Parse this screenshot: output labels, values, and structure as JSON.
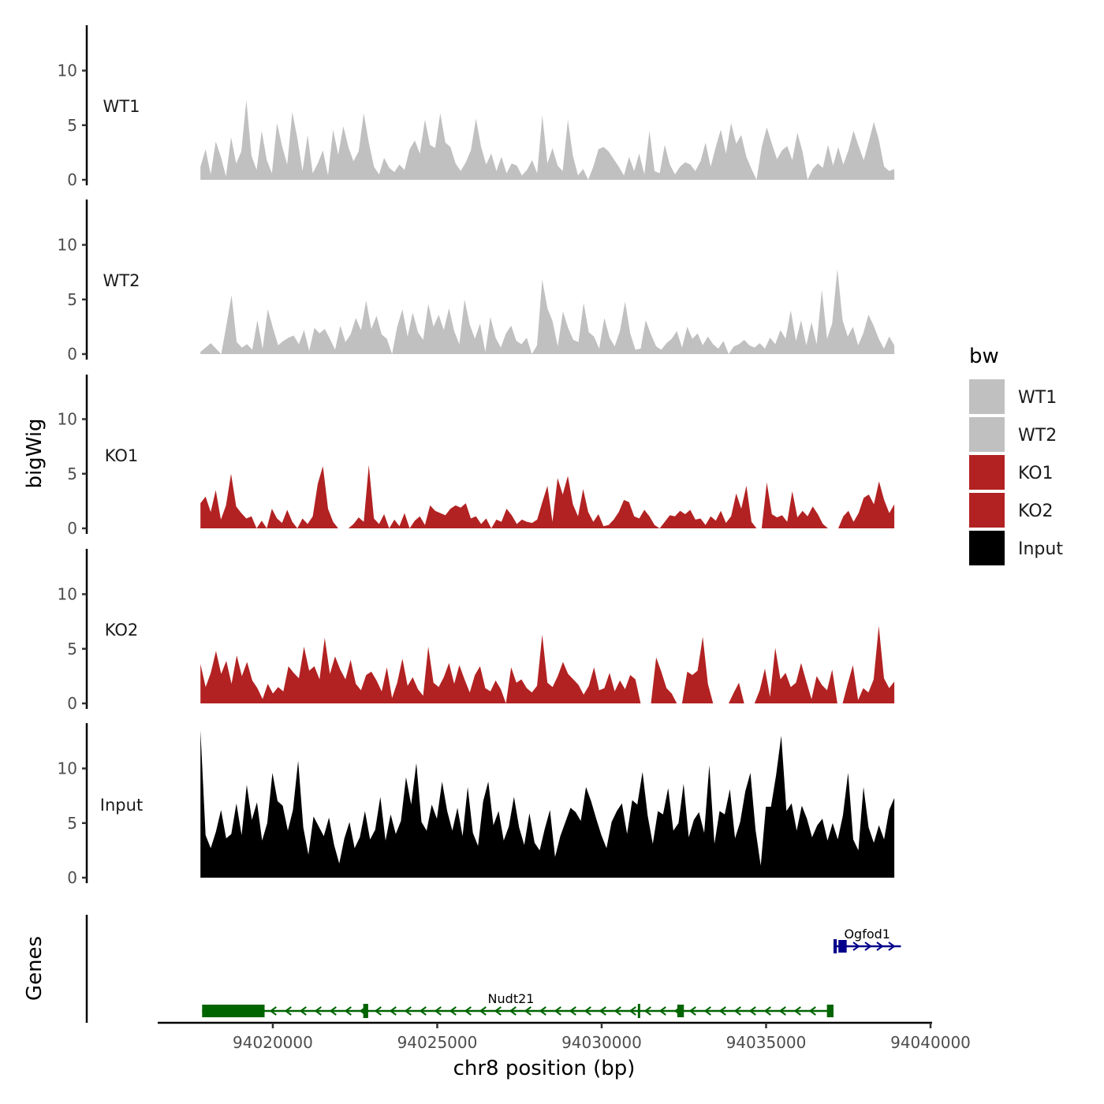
{
  "chart_data": {
    "type": "area",
    "ylabel": "bigWig",
    "gene_panel_label": "Genes",
    "xlabel": "chr8 position (bp)",
    "xlim": [
      94016500,
      94040000
    ],
    "x_ticks": [
      94020000,
      94025000,
      94030000,
      94035000,
      94040000
    ],
    "x_tick_labels": [
      "94020000",
      "94025000",
      "94030000",
      "94035000",
      "94040000"
    ],
    "ylim": [
      0,
      14
    ],
    "y_ticks": [
      0,
      5,
      10
    ],
    "y_tick_labels": [
      "0",
      "5",
      "10"
    ],
    "data_x_range": [
      94017800,
      94038900
    ],
    "legend": {
      "title": "bw",
      "position": "right",
      "entries": [
        {
          "label": "WT1",
          "color": "#c0c0c0"
        },
        {
          "label": "WT2",
          "color": "#c0c0c0"
        },
        {
          "label": "KO1",
          "color": "#b22222"
        },
        {
          "label": "KO2",
          "color": "#b22222"
        },
        {
          "label": "Input",
          "color": "#000000"
        }
      ]
    },
    "series": [
      {
        "name": "WT1",
        "color": "#c0c0c0",
        "values": [
          1.2,
          2.8,
          0.5,
          3.5,
          2.1,
          0.3,
          3.9,
          1.5,
          2.6,
          7.3,
          2.2,
          0.9,
          4.5,
          1.8,
          0.6,
          5.2,
          3.1,
          1.4,
          6.2,
          3.8,
          0.8,
          4.1,
          0.6,
          1.5,
          2.7,
          0.4,
          4.6,
          2.3,
          4.9,
          3.0,
          1.7,
          2.6,
          6.1,
          3.4,
          1.2,
          0.5,
          2.0,
          1.1,
          0.7,
          1.4,
          0.9,
          2.8,
          3.6,
          2.4,
          5.5,
          3.2,
          2.9,
          6.1,
          3.4,
          3.0,
          1.5,
          0.8,
          1.6,
          2.7,
          5.6,
          3.0,
          1.4,
          2.4,
          0.8,
          2.1,
          0.6,
          1.5,
          1.3,
          0.4,
          0.9,
          1.8,
          0.6,
          5.9,
          1.5,
          2.9,
          1.3,
          0.8,
          5.5,
          2.2,
          0.4,
          1.0,
          0.0,
          1.2,
          2.8,
          3.0,
          2.6,
          1.9,
          1.2,
          0.4,
          2.1,
          0.8,
          2.4,
          0.5,
          4.5,
          0.8,
          0.6,
          3.2,
          1.4,
          0.5,
          1.2,
          1.6,
          1.4,
          0.8,
          1.7,
          3.4,
          1.2,
          3.0,
          4.6,
          2.4,
          5.2,
          3.3,
          4.1,
          2.1,
          1.0,
          0.0,
          3.0,
          4.8,
          3.3,
          1.9,
          2.7,
          3.1,
          1.8,
          4.3,
          2.6,
          0.0,
          1.0,
          1.5,
          1.1,
          3.2,
          1.3,
          3.0,
          1.4,
          2.7,
          4.5,
          3.1,
          1.8,
          3.5,
          5.3,
          3.6,
          1.2,
          0.8,
          1.0
        ]
      },
      {
        "name": "WT2",
        "color": "#c0c0c0",
        "values": [
          0.2,
          0.6,
          1.0,
          0.5,
          0.0,
          2.6,
          5.4,
          1.1,
          0.6,
          0.9,
          0.4,
          3.1,
          0.5,
          4.1,
          2.4,
          0.8,
          1.2,
          1.5,
          1.7,
          0.9,
          2.2,
          0.3,
          2.4,
          1.9,
          2.3,
          1.4,
          0.4,
          2.6,
          1.1,
          1.8,
          3.3,
          2.2,
          4.9,
          2.3,
          3.5,
          1.8,
          1.4,
          0.0,
          2.5,
          4.1,
          1.6,
          3.8,
          2.0,
          1.3,
          4.6,
          2.5,
          3.6,
          2.2,
          4.2,
          2.1,
          0.9,
          5.0,
          2.7,
          1.4,
          2.8,
          0.2,
          3.4,
          1.5,
          0.6,
          1.9,
          2.6,
          1.2,
          0.9,
          1.5,
          0.0,
          0.8,
          6.8,
          4.2,
          3.0,
          0.7,
          3.9,
          2.4,
          1.3,
          1.1,
          4.7,
          2.0,
          1.6,
          0.5,
          3.3,
          1.5,
          0.7,
          2.1,
          4.8,
          1.9,
          0.4,
          0.5,
          3.1,
          1.8,
          0.7,
          0.4,
          1.0,
          1.4,
          2.1,
          0.6,
          2.5,
          1.4,
          1.9,
          0.8,
          1.6,
          0.9,
          0.5,
          1.2,
          0.0,
          0.7,
          0.9,
          1.3,
          0.8,
          0.6,
          1.0,
          0.5,
          1.5,
          0.9,
          2.2,
          1.4,
          4.0,
          1.2,
          3.1,
          0.8,
          2.9,
          0.9,
          5.9,
          1.4,
          2.8,
          7.8,
          3.1,
          1.6,
          2.5,
          0.8,
          1.9,
          3.6,
          2.6,
          1.4,
          0.5,
          1.6,
          0.8
        ]
      },
      {
        "name": "KO1",
        "color": "#b22222",
        "values": [
          2.3,
          2.9,
          1.5,
          3.5,
          0.8,
          2.1,
          5.0,
          2.0,
          1.4,
          0.9,
          1.1,
          0.0,
          0.7,
          0.0,
          1.8,
          0.9,
          0.5,
          1.7,
          0.6,
          0.0,
          0.9,
          0.4,
          1.1,
          4.1,
          5.7,
          1.8,
          0.6,
          0.0,
          0.0,
          0.0,
          0.4,
          1.0,
          0.6,
          5.8,
          0.9,
          0.4,
          1.3,
          0.0,
          0.8,
          0.2,
          1.4,
          0.0,
          0.7,
          1.1,
          0.3,
          2.1,
          1.6,
          1.4,
          1.2,
          1.8,
          2.1,
          1.9,
          2.3,
          0.9,
          1.1,
          0.4,
          0.9,
          0.0,
          0.8,
          0.6,
          1.8,
          1.2,
          0.4,
          0.8,
          0.6,
          0.5,
          0.8,
          2.4,
          3.9,
          0.6,
          4.6,
          3.1,
          4.8,
          2.2,
          1.1,
          3.6,
          1.5,
          0.6,
          1.3,
          0.2,
          0.3,
          0.8,
          1.5,
          2.6,
          2.4,
          1.1,
          0.9,
          1.7,
          1.1,
          0.3,
          0.0,
          0.6,
          1.2,
          1.1,
          1.6,
          1.3,
          1.7,
          0.8,
          0.9,
          0.3,
          1.1,
          0.7,
          1.6,
          0.5,
          1.1,
          3.2,
          1.8,
          3.9,
          0.6,
          0.0,
          0.0,
          4.2,
          1.3,
          1.0,
          1.2,
          0.6,
          3.4,
          1.0,
          1.6,
          1.1,
          2.0,
          1.3,
          0.4,
          0.0,
          0.0,
          0.0,
          1.1,
          1.6,
          0.6,
          1.4,
          2.8,
          3.1,
          2.2,
          4.3,
          2.6,
          1.4,
          2.2
        ]
      },
      {
        "name": "KO2",
        "color": "#b22222",
        "values": [
          3.6,
          1.5,
          2.8,
          4.8,
          2.7,
          3.9,
          1.8,
          4.4,
          2.5,
          3.8,
          2.1,
          1.4,
          0.4,
          1.8,
          0.9,
          1.5,
          1.1,
          3.4,
          2.8,
          2.3,
          5.2,
          3.0,
          3.4,
          2.2,
          6.0,
          2.7,
          4.3,
          3.1,
          2.2,
          4.0,
          1.8,
          1.2,
          2.6,
          2.9,
          2.1,
          1.1,
          3.3,
          0.5,
          1.9,
          4.1,
          1.6,
          2.4,
          1.3,
          0.7,
          5.2,
          1.9,
          1.5,
          2.4,
          3.7,
          1.8,
          3.5,
          2.2,
          1.0,
          2.6,
          3.4,
          1.4,
          1.1,
          2.1,
          1.3,
          0.0,
          3.3,
          1.9,
          2.2,
          1.4,
          1.0,
          1.6,
          6.3,
          1.9,
          1.5,
          2.5,
          3.8,
          2.7,
          2.2,
          1.7,
          0.8,
          1.6,
          3.3,
          1.2,
          1.4,
          2.8,
          1.1,
          2.1,
          1.3,
          2.6,
          2.2,
          0.0,
          0.0,
          0.0,
          4.2,
          2.9,
          1.4,
          0.9,
          0.0,
          0.0,
          2.9,
          2.6,
          3.0,
          6.1,
          1.8,
          0.0,
          0.0,
          0.0,
          0.0,
          1.0,
          1.9,
          0.0,
          0.0,
          0.0,
          1.2,
          3.2,
          0.6,
          5.1,
          2.2,
          2.8,
          1.5,
          1.9,
          3.7,
          2.0,
          0.4,
          2.5,
          1.7,
          1.2,
          3.1,
          0.0,
          0.0,
          1.8,
          3.5,
          0.3,
          1.4,
          1.0,
          2.2,
          7.1,
          2.3,
          1.4,
          2.0
        ]
      },
      {
        "name": "Input",
        "color": "#000000",
        "values": [
          13.5,
          3.9,
          2.7,
          4.2,
          6.2,
          3.6,
          4.0,
          6.8,
          3.9,
          8.5,
          5.3,
          6.9,
          3.4,
          5.0,
          9.6,
          7.0,
          6.6,
          4.3,
          6.2,
          10.7,
          4.6,
          2.1,
          5.6,
          4.7,
          3.8,
          5.5,
          3.0,
          1.3,
          3.6,
          5.1,
          2.7,
          3.7,
          6.1,
          3.5,
          4.4,
          7.4,
          3.4,
          5.8,
          4.0,
          5.2,
          9.2,
          6.7,
          10.5,
          5.1,
          4.3,
          6.7,
          5.4,
          8.8,
          6.1,
          4.3,
          6.4,
          3.8,
          8.3,
          4.1,
          2.9,
          7.0,
          8.8,
          4.8,
          6.1,
          3.4,
          4.7,
          7.4,
          4.6,
          3.0,
          5.9,
          3.2,
          2.5,
          4.5,
          6.2,
          1.9,
          3.8,
          5.1,
          6.4,
          6.0,
          5.2,
          8.3,
          7.0,
          5.4,
          3.9,
          2.7,
          5.1,
          6.1,
          6.8,
          4.0,
          7.1,
          6.7,
          9.7,
          5.7,
          3.1,
          6.1,
          5.8,
          8.2,
          4.3,
          5.0,
          8.6,
          3.7,
          5.3,
          6.0,
          4.1,
          10.3,
          3.1,
          6.1,
          5.8,
          8.1,
          3.6,
          5.1,
          7.9,
          9.6,
          4.4,
          1.1,
          6.5,
          6.5,
          9.4,
          13.0,
          6.1,
          6.8,
          4.3,
          6.6,
          5.4,
          3.7,
          4.8,
          5.4,
          3.4,
          5.0,
          3.5,
          5.7,
          9.6,
          3.5,
          2.5,
          8.3,
          4.6,
          3.2,
          4.8,
          3.5,
          6.2,
          7.3
        ]
      }
    ],
    "genes": [
      {
        "name": "Nudt21",
        "strand": "-",
        "color": "#006400",
        "start": 94017850,
        "end": 94037000,
        "exons": [
          [
            94017850,
            94019750
          ],
          [
            94022750,
            94022900
          ],
          [
            94031100,
            94031150
          ],
          [
            94032300,
            94032500
          ],
          [
            94036850,
            94037050
          ]
        ]
      },
      {
        "name": "Ogfod1",
        "strand": "+",
        "color": "#00008b",
        "start": 94037050,
        "end": 94039100,
        "exons": [
          [
            94037050,
            94037150
          ],
          [
            94037200,
            94037450
          ]
        ]
      }
    ]
  }
}
